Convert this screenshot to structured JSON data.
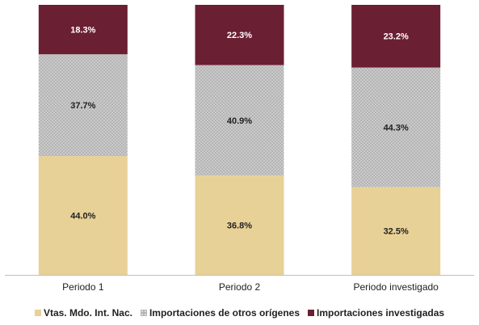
{
  "chart_data": {
    "type": "bar",
    "stacked": true,
    "percent_stacked": true,
    "categories": [
      "Periodo 1",
      "Periodo 2",
      "Periodo investigado"
    ],
    "ylim": [
      0,
      100
    ],
    "grid": false,
    "legend_position": "bottom",
    "series": [
      {
        "name": "Vtas. Mdo. Int. Nac.",
        "values": [
          44.0,
          36.8,
          32.5
        ],
        "labels": [
          "44.0%",
          "36.8%",
          "32.5%"
        ],
        "color": "#e8d197"
      },
      {
        "name": "Importaciones de otros orígenes",
        "values": [
          37.7,
          40.9,
          44.3
        ],
        "labels": [
          "37.7%",
          "40.9%",
          "44.3%"
        ],
        "color": "#b9b9b9",
        "pattern": "dotted"
      },
      {
        "name": "Importaciones investigadas",
        "values": [
          18.3,
          22.3,
          23.2
        ],
        "labels": [
          "18.3%",
          "22.3%",
          "23.2%"
        ],
        "color": "#6b1f33"
      }
    ]
  }
}
